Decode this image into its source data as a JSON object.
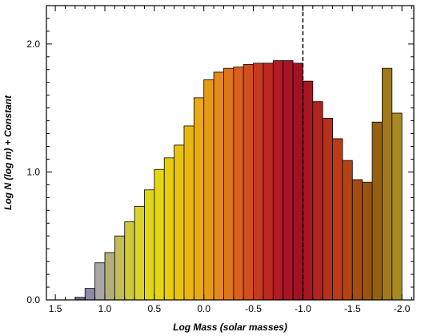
{
  "chart_data": {
    "type": "bar",
    "title": "",
    "xlabel": "Log Mass (solar masses)",
    "ylabel": "Log N (log m) + Constant",
    "x_reversed": true,
    "xlim": [
      1.59,
      -2.12
    ],
    "ylim": [
      0.0,
      2.3
    ],
    "x_ticks": [
      {
        "value": 1.5,
        "label": "1.5"
      },
      {
        "value": 1.0,
        "label": "1.0"
      },
      {
        "value": 0.5,
        "label": "0.5"
      },
      {
        "value": 0.0,
        "label": "0.0"
      },
      {
        "value": -0.5,
        "label": "-0.5"
      },
      {
        "value": -1.0,
        "label": "-1.0"
      },
      {
        "value": -1.5,
        "label": "-1.5"
      },
      {
        "value": -2.0,
        "label": "-2.0"
      }
    ],
    "y_ticks": [
      {
        "value": 0.0,
        "label": "0.0"
      },
      {
        "value": 1.0,
        "label": "1.0"
      },
      {
        "value": 2.0,
        "label": "2.0"
      }
    ],
    "bin_width": 0.1,
    "bin_left_edges": [
      1.3,
      1.2,
      1.1,
      1.0,
      0.9,
      0.8,
      0.7,
      0.6,
      0.5,
      0.4,
      0.3,
      0.2,
      0.1,
      0.0,
      -0.1,
      -0.2,
      -0.3,
      -0.4,
      -0.5,
      -0.6,
      -0.7,
      -0.8,
      -0.9,
      -1.0,
      -1.1,
      -1.2,
      -1.3,
      -1.4,
      -1.5,
      -1.6,
      -1.7,
      -1.8,
      -1.9
    ],
    "values": [
      0.02,
      0.09,
      0.29,
      0.37,
      0.5,
      0.61,
      0.73,
      0.86,
      1.02,
      1.11,
      1.21,
      1.36,
      1.58,
      1.72,
      1.78,
      1.81,
      1.82,
      1.84,
      1.85,
      1.85,
      1.87,
      1.87,
      1.85,
      1.71,
      1.55,
      1.42,
      1.26,
      1.09,
      0.94,
      0.92,
      1.39,
      1.81,
      1.46
    ],
    "bar_colors": [
      "#6f6d9a",
      "#8c88a6",
      "#a9a5a4",
      "#b4ae7b",
      "#c4bd55",
      "#cfc93a",
      "#d9d32a",
      "#e0d619",
      "#e6d612",
      "#e8cd0f",
      "#e9c30f",
      "#eab712",
      "#e8aa14",
      "#e69a17",
      "#e38a1a",
      "#de761b",
      "#d8621d",
      "#d04e1f",
      "#c63a21",
      "#bc2822",
      "#b11b24",
      "#a81424",
      "#a31224",
      "#a81622",
      "#b1231f",
      "#b9301a",
      "#bc3a16",
      "#b44313",
      "#a74c10",
      "#9a540e",
      "#95600f",
      "#a07a1b",
      "#a88b22"
    ],
    "reference_line": {
      "x": -1.0,
      "style": "dashed",
      "color": "#000000"
    },
    "grid": false,
    "legend": "none"
  }
}
